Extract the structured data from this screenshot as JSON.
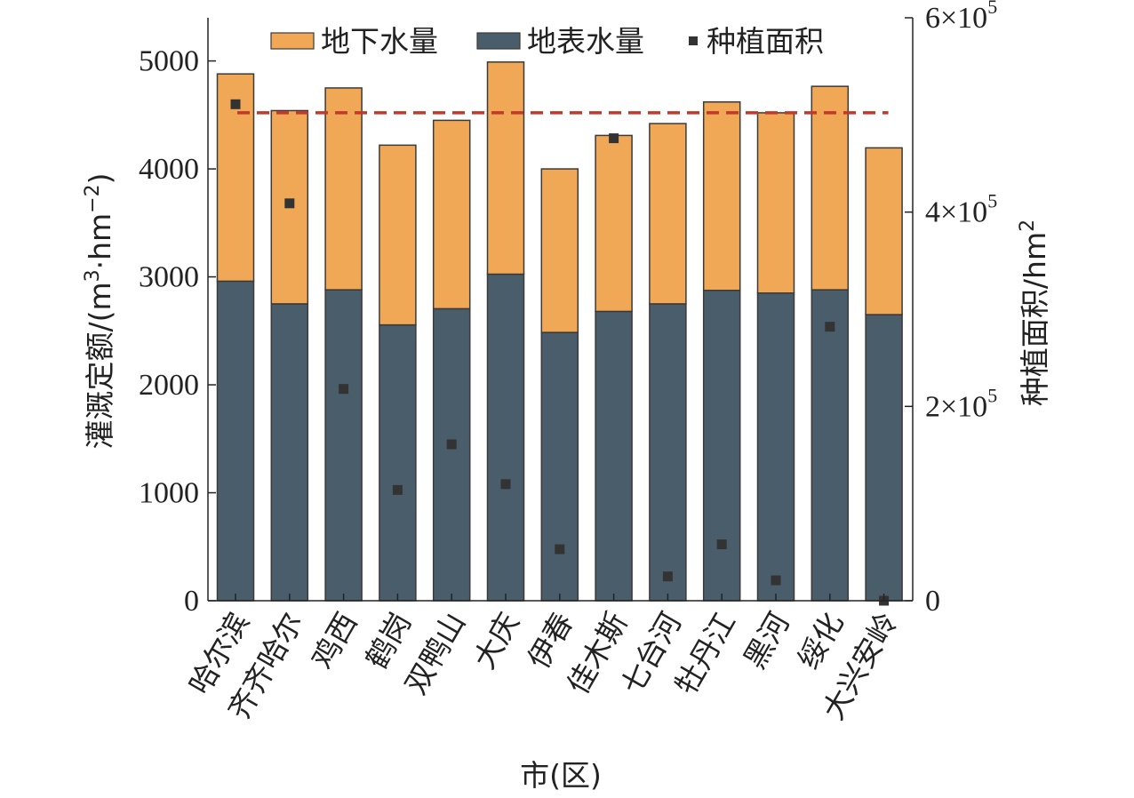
{
  "chart_data": {
    "type": "bar",
    "stacked": true,
    "categories": [
      "哈尔滨",
      "齐齐哈尔",
      "鸡西",
      "鹤岗",
      "双鸭山",
      "大庆",
      "伊春",
      "佳木斯",
      "七台河",
      "牡丹江",
      "黑河",
      "绥化",
      "大兴安岭"
    ],
    "series": [
      {
        "name": "地表水量",
        "axis": "left",
        "color": "#4a5d6a",
        "values": [
          2960,
          2750,
          2880,
          2555,
          2705,
          3025,
          2485,
          2680,
          2750,
          2875,
          2850,
          2880,
          2650
        ]
      },
      {
        "name": "地下水量",
        "axis": "left",
        "color": "#f0a857",
        "values": [
          1920,
          1790,
          1870,
          1665,
          1745,
          1965,
          1515,
          1630,
          1670,
          1745,
          1670,
          1885,
          1545
        ]
      },
      {
        "name": "种植面积",
        "axis": "right",
        "type": "scatter",
        "color": "#333333",
        "values": [
          511000,
          409000,
          218000,
          114000,
          161000,
          120000,
          53000,
          476000,
          25000,
          58000,
          21000,
          282000,
          0
        ]
      }
    ],
    "reference_line": {
      "value": 4520,
      "axis": "left",
      "style": "dashed",
      "color": "#c0392b"
    },
    "ylim": [
      0,
      5400
    ],
    "y_ticks": [
      "0",
      "1000",
      "2000",
      "3000",
      "4000",
      "5000"
    ],
    "y2lim": [
      0,
      600000
    ],
    "y2_ticks": [
      {
        "value": 0,
        "label": "0",
        "exp": ""
      },
      {
        "value": 200000,
        "label": "2×10",
        "exp": "5"
      },
      {
        "value": 400000,
        "label": "4×10",
        "exp": "5"
      },
      {
        "value": 600000,
        "label": "6×10",
        "exp": "5"
      }
    ],
    "ylabel": {
      "prefix": "灌溉定额/(m",
      "sup1": "3",
      "mid": "·hm",
      "sup2": "−2",
      "suffix": ")"
    },
    "y2label": {
      "prefix": "种植面积/hm",
      "sup": "2"
    },
    "xlabel": "市(区)",
    "legend": {
      "position": "top",
      "items": [
        {
          "label": "地下水量",
          "kind": "box",
          "color": "#f0a857"
        },
        {
          "label": "地表水量",
          "kind": "box",
          "color": "#4a5d6a"
        },
        {
          "label": "种植面积",
          "kind": "marker",
          "color": "#333333"
        }
      ]
    },
    "grid": false
  }
}
